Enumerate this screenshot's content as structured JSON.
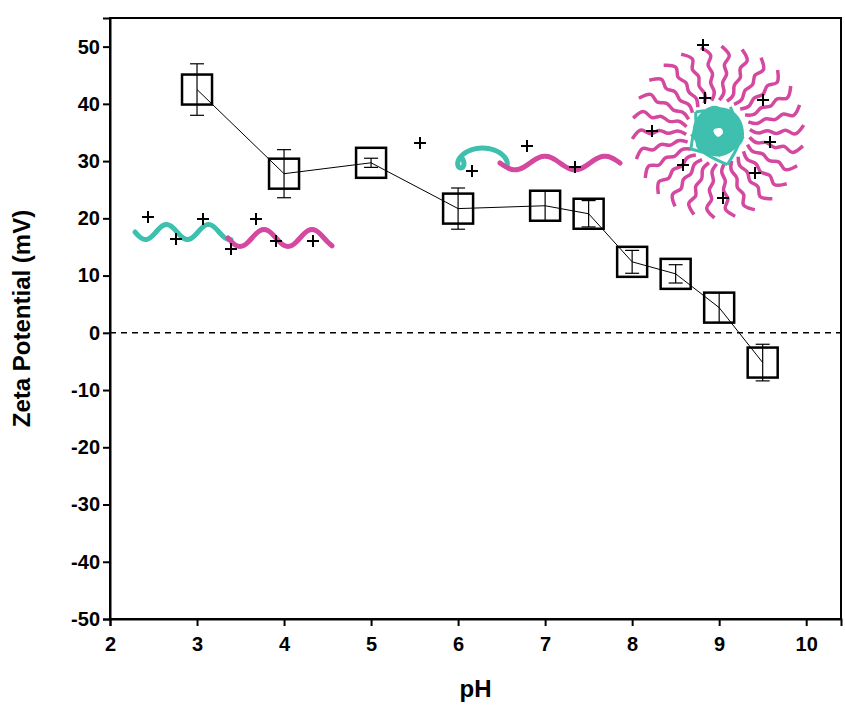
{
  "chart_data": {
    "type": "line",
    "marker": "square",
    "color": "#000000",
    "x": [
      3,
      4,
      5,
      6,
      7,
      7.5,
      8,
      8.5,
      9,
      9.5
    ],
    "values": [
      42.5,
      27.8,
      29.7,
      21.7,
      22.2,
      20.8,
      12.4,
      10.3,
      4.4,
      -5.2
    ],
    "errors": [
      4.5,
      4.2,
      0.8,
      3.6,
      2.6,
      2.3,
      2.0,
      1.6,
      2.6,
      3.2
    ],
    "xlabel": "pH",
    "ylabel": "Zeta Potential (mV)",
    "xlim": [
      2,
      10.4
    ],
    "ylim": [
      -50,
      55
    ],
    "xticks": [
      2,
      3,
      4,
      5,
      6,
      7,
      8,
      9,
      10
    ],
    "yticks": [
      -50,
      -40,
      -30,
      -20,
      -10,
      0,
      10,
      20,
      30,
      40,
      50
    ],
    "reference_y": 0
  }
}
